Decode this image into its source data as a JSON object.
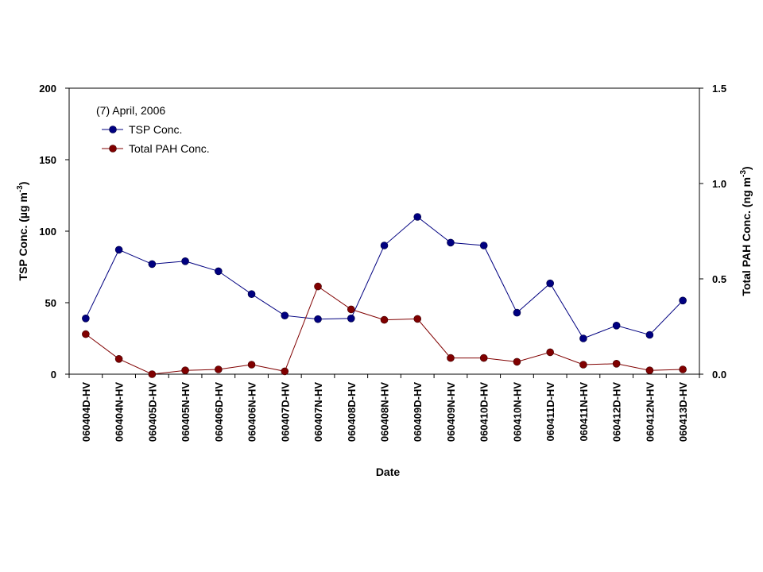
{
  "chart_data": {
    "type": "line",
    "annotation": "(7) April, 2006",
    "xlabel": "Date",
    "ylabel": "TSP Conc. (µg m-3)",
    "ylabel_main": "TSP Conc. (µg m",
    "ylabel_sup": "-3",
    "ylabel_close": ")",
    "y2label": "Total PAH Conc. (ng m-3)",
    "y2label_main": "Total PAH Conc. (ng m",
    "y2label_sup": "-3",
    "y2label_close": ")",
    "ylim": [
      0,
      200
    ],
    "y2lim": [
      0,
      1.5
    ],
    "yticks": [
      "0",
      "50",
      "100",
      "150",
      "200"
    ],
    "y2ticks": [
      "0.0",
      "0.5",
      "1.0",
      "1.5"
    ],
    "grid": false,
    "legend_position": "top-left",
    "categories": [
      "060404D-HV",
      "060404N-HV",
      "060405D-HV",
      "060405N-HV",
      "060406D-HV",
      "060406N-HV",
      "060407D-HV",
      "060407N-HV",
      "060408D-HV",
      "060408N-HV",
      "060409D-HV",
      "060409N-HV",
      "060410D-HV",
      "060410N-HV",
      "060411D-HV",
      "060411N-HV",
      "060412D-HV",
      "060412N-HV",
      "060413D-HV"
    ],
    "series": [
      {
        "name": "TSP Conc.",
        "axis": "left",
        "color": "#000080",
        "values": [
          39,
          87,
          77,
          79,
          72,
          56,
          41,
          38.5,
          39,
          90,
          110,
          92,
          90,
          43,
          63.5,
          25,
          34,
          27.5,
          51.5
        ]
      },
      {
        "name": "Total PAH Conc.",
        "axis": "right",
        "color": "#800000",
        "values": [
          0.21,
          0.08,
          0.0,
          0.02,
          0.025,
          0.05,
          0.015,
          0.46,
          0.34,
          0.285,
          0.29,
          0.085,
          0.085,
          0.065,
          0.115,
          0.05,
          0.055,
          0.02,
          0.025
        ]
      }
    ]
  }
}
